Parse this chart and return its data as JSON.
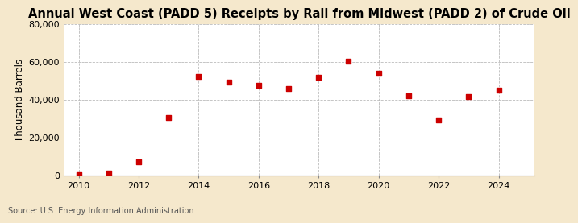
{
  "title": "Annual West Coast (PADD 5) Receipts by Rail from Midwest (PADD 2) of Crude Oil",
  "ylabel": "Thousand Barrels",
  "source": "Source: U.S. Energy Information Administration",
  "background_color": "#f5e8cc",
  "plot_background_color": "#ffffff",
  "grid_color": "#bbbbbb",
  "marker_color": "#cc0000",
  "years": [
    2010,
    2011,
    2012,
    2013,
    2014,
    2015,
    2016,
    2017,
    2018,
    2019,
    2020,
    2021,
    2022,
    2023,
    2024
  ],
  "values": [
    200,
    1200,
    7000,
    30500,
    52500,
    49500,
    47500,
    46000,
    52000,
    60500,
    54000,
    42000,
    29500,
    41500,
    45000
  ],
  "xlim": [
    2009.5,
    2025.2
  ],
  "ylim": [
    0,
    80000
  ],
  "yticks": [
    0,
    20000,
    40000,
    60000,
    80000
  ],
  "xticks": [
    2010,
    2012,
    2014,
    2016,
    2018,
    2020,
    2022,
    2024
  ],
  "title_fontsize": 10.5,
  "label_fontsize": 8.5,
  "tick_fontsize": 8,
  "source_fontsize": 7
}
